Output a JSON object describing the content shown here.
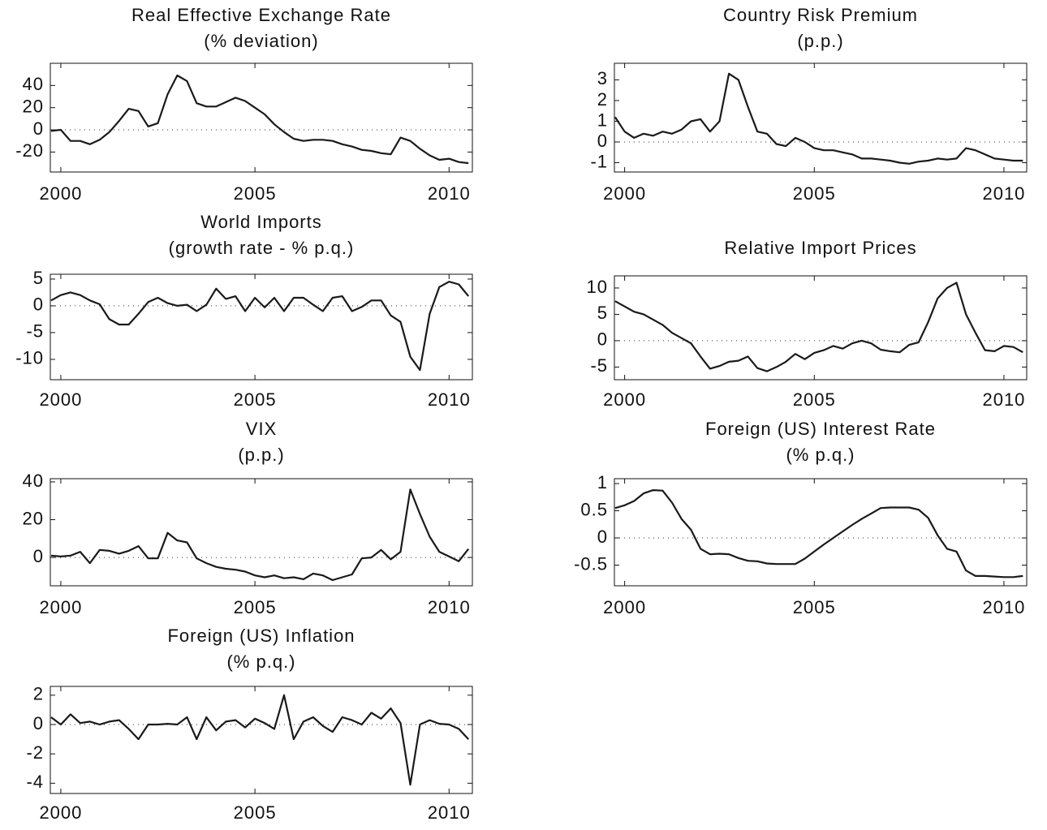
{
  "chart_data": [
    {
      "type": "line",
      "title": "Real Effective Exchange Rate",
      "subtitle": "(% deviation)",
      "x": [
        1999.75,
        2000,
        2000.25,
        2000.5,
        2000.75,
        2001,
        2001.25,
        2001.5,
        2001.75,
        2002,
        2002.25,
        2002.5,
        2002.75,
        2003,
        2003.25,
        2003.5,
        2003.75,
        2004,
        2004.25,
        2004.5,
        2004.75,
        2005,
        2005.25,
        2005.5,
        2005.75,
        2006,
        2006.25,
        2006.5,
        2006.75,
        2007,
        2007.25,
        2007.5,
        2007.75,
        2008,
        2008.25,
        2008.5,
        2008.75,
        2009,
        2009.25,
        2009.5,
        2009.75,
        2010,
        2010.25,
        2010.5
      ],
      "series": [
        {
          "color": "#1a1a1a",
          "values": [
            -1,
            0,
            -10,
            -10,
            -13,
            -9,
            -2,
            8,
            19,
            17,
            3,
            6,
            32,
            49,
            44,
            24,
            21,
            21,
            25,
            29,
            26,
            20,
            14,
            5,
            -2,
            -8,
            -10,
            -9,
            -9,
            -10,
            -13,
            -15,
            -18,
            -19,
            -21,
            -22,
            -7,
            -10,
            -17,
            -23,
            -27,
            -26,
            -29,
            -30
          ]
        }
      ],
      "xlim": [
        1999.73,
        2010.6
      ],
      "xticks": [
        2000,
        2005,
        2010
      ],
      "ylim": [
        -38,
        60
      ],
      "yticks": [
        -20,
        0,
        20,
        40
      ],
      "hline": 0
    },
    {
      "type": "line",
      "title": "Country Risk Premium",
      "subtitle": "(p.p.)",
      "x": [
        1999.75,
        2000,
        2000.25,
        2000.5,
        2000.75,
        2001,
        2001.25,
        2001.5,
        2001.75,
        2002,
        2002.25,
        2002.5,
        2002.75,
        2003,
        2003.25,
        2003.5,
        2003.75,
        2004,
        2004.25,
        2004.5,
        2004.75,
        2005,
        2005.25,
        2005.5,
        2005.75,
        2006,
        2006.25,
        2006.5,
        2006.75,
        2007,
        2007.25,
        2007.5,
        2007.75,
        2008,
        2008.25,
        2008.5,
        2008.75,
        2009,
        2009.25,
        2009.5,
        2009.75,
        2010,
        2010.25,
        2010.5
      ],
      "series": [
        {
          "color": "#1a1a1a",
          "values": [
            1.2,
            0.5,
            0.2,
            0.4,
            0.3,
            0.5,
            0.4,
            0.6,
            1.0,
            1.1,
            0.5,
            1.0,
            3.3,
            3.0,
            1.7,
            0.5,
            0.4,
            -0.1,
            -0.2,
            0.2,
            0,
            -0.3,
            -0.4,
            -0.4,
            -0.5,
            -0.6,
            -0.8,
            -0.8,
            -0.85,
            -0.9,
            -1.0,
            -1.05,
            -0.95,
            -0.9,
            -0.8,
            -0.85,
            -0.8,
            -0.3,
            -0.4,
            -0.6,
            -0.8,
            -0.85,
            -0.9,
            -0.9
          ]
        }
      ],
      "xlim": [
        1999.73,
        2010.6
      ],
      "xticks": [
        2000,
        2005,
        2010
      ],
      "ylim": [
        -1.45,
        3.8
      ],
      "yticks": [
        -1,
        0,
        1,
        2,
        3
      ],
      "hline": 0
    },
    {
      "type": "line",
      "title": "World Imports",
      "subtitle": "(growth rate - % p.q.)",
      "x": [
        1999.75,
        2000,
        2000.25,
        2000.5,
        2000.75,
        2001,
        2001.25,
        2001.5,
        2001.75,
        2002,
        2002.25,
        2002.5,
        2002.75,
        2003,
        2003.25,
        2003.5,
        2003.75,
        2004,
        2004.25,
        2004.5,
        2004.75,
        2005,
        2005.25,
        2005.5,
        2005.75,
        2006,
        2006.25,
        2006.5,
        2006.75,
        2007,
        2007.25,
        2007.5,
        2007.75,
        2008,
        2008.25,
        2008.5,
        2008.75,
        2009,
        2009.25,
        2009.5,
        2009.75,
        2010,
        2010.25,
        2010.5
      ],
      "series": [
        {
          "color": "#1a1a1a",
          "values": [
            1,
            2,
            2.5,
            2,
            1,
            0.3,
            -2.5,
            -3.5,
            -3.5,
            -1.5,
            0.7,
            1.5,
            0.5,
            0,
            0.2,
            -1,
            0.2,
            3.2,
            1.3,
            1.8,
            -1,
            1.5,
            -0.3,
            1.5,
            -1,
            1.5,
            1.5,
            0.2,
            -1,
            1.5,
            1.8,
            -1,
            -0.2,
            1,
            1,
            -1.8,
            -3,
            -9.5,
            -12,
            -1.5,
            3.5,
            4.5,
            4,
            1.8
          ]
        }
      ],
      "xlim": [
        1999.73,
        2010.6
      ],
      "xticks": [
        2000,
        2005,
        2010
      ],
      "ylim": [
        -13.8,
        5.9
      ],
      "yticks": [
        -10,
        -5,
        0,
        5
      ],
      "hline": 0
    },
    {
      "type": "line",
      "title": "Relative Import Prices",
      "x": [
        1999.75,
        2000,
        2000.25,
        2000.5,
        2000.75,
        2001,
        2001.25,
        2001.5,
        2001.75,
        2002,
        2002.25,
        2002.5,
        2002.75,
        2003,
        2003.25,
        2003.5,
        2003.75,
        2004,
        2004.25,
        2004.5,
        2004.75,
        2005,
        2005.25,
        2005.5,
        2005.75,
        2006,
        2006.25,
        2006.5,
        2006.75,
        2007,
        2007.25,
        2007.5,
        2007.75,
        2008,
        2008.25,
        2008.5,
        2008.75,
        2009,
        2009.25,
        2009.5,
        2009.75,
        2010,
        2010.25,
        2010.5
      ],
      "series": [
        {
          "color": "#1a1a1a",
          "values": [
            7.5,
            6.5,
            5.5,
            5,
            4,
            3,
            1.5,
            0.5,
            -0.5,
            -3,
            -5.3,
            -4.8,
            -4,
            -3.8,
            -3,
            -5.2,
            -5.8,
            -5,
            -4,
            -2.5,
            -3.5,
            -2.3,
            -1.8,
            -1,
            -1.5,
            -0.5,
            0,
            -0.5,
            -1.7,
            -2,
            -2.2,
            -0.8,
            -0.3,
            3.5,
            8,
            10,
            11,
            5,
            1.5,
            -1.8,
            -2,
            -1,
            -1.2,
            -2.2
          ]
        }
      ],
      "xlim": [
        1999.73,
        2010.6
      ],
      "xticks": [
        2000,
        2005,
        2010
      ],
      "ylim": [
        -7.4,
        12.3
      ],
      "yticks": [
        -5,
        0,
        5,
        10
      ],
      "hline": 0
    },
    {
      "type": "line",
      "title": "VIX",
      "subtitle": "(p.p.)",
      "x": [
        1999.75,
        2000,
        2000.25,
        2000.5,
        2000.75,
        2001,
        2001.25,
        2001.5,
        2001.75,
        2002,
        2002.25,
        2002.5,
        2002.75,
        2003,
        2003.25,
        2003.5,
        2003.75,
        2004,
        2004.25,
        2004.5,
        2004.75,
        2005,
        2005.25,
        2005.5,
        2005.75,
        2006,
        2006.25,
        2006.5,
        2006.75,
        2007,
        2007.25,
        2007.5,
        2007.75,
        2008,
        2008.25,
        2008.5,
        2008.75,
        2009,
        2009.25,
        2009.5,
        2009.75,
        2010,
        2010.25,
        2010.5
      ],
      "series": [
        {
          "color": "#1a1a1a",
          "values": [
            1,
            0.5,
            1,
            3,
            -3,
            4,
            3.5,
            2,
            3.5,
            6,
            -0.5,
            -0.5,
            13,
            9,
            8,
            -0.5,
            -3,
            -5,
            -6,
            -6.5,
            -7.5,
            -9.5,
            -10.5,
            -9.5,
            -11,
            -10.5,
            -11.5,
            -8.5,
            -9.5,
            -12,
            -10.5,
            -9,
            -0.5,
            0,
            4,
            -1,
            3,
            36,
            23,
            11,
            3,
            0.5,
            -2,
            4.5
          ]
        }
      ],
      "xlim": [
        1999.73,
        2010.6
      ],
      "xticks": [
        2000,
        2005,
        2010
      ],
      "ylim": [
        -15,
        41.7
      ],
      "yticks": [
        0,
        20,
        40
      ],
      "hline": 0
    },
    {
      "type": "line",
      "title": "Foreign (US) Interest Rate",
      "subtitle": "(% p.q.)",
      "x": [
        1999.75,
        2000,
        2000.25,
        2000.5,
        2000.75,
        2001,
        2001.25,
        2001.5,
        2001.75,
        2002,
        2002.25,
        2002.5,
        2002.75,
        2003,
        2003.25,
        2003.5,
        2003.75,
        2004,
        2004.25,
        2004.5,
        2004.75,
        2005,
        2005.25,
        2005.5,
        2005.75,
        2006,
        2006.25,
        2006.5,
        2006.75,
        2007,
        2007.25,
        2007.5,
        2007.75,
        2008,
        2008.25,
        2008.5,
        2008.75,
        2009,
        2009.25,
        2009.5,
        2009.75,
        2010,
        2010.25,
        2010.5
      ],
      "series": [
        {
          "color": "#1a1a1a",
          "values": [
            0.55,
            0.6,
            0.68,
            0.82,
            0.88,
            0.87,
            0.65,
            0.35,
            0.15,
            -0.2,
            -0.3,
            -0.29,
            -0.3,
            -0.37,
            -0.42,
            -0.43,
            -0.47,
            -0.48,
            -0.48,
            -0.48,
            -0.38,
            -0.25,
            -0.12,
            0,
            0.12,
            0.24,
            0.35,
            0.45,
            0.55,
            0.56,
            0.56,
            0.56,
            0.52,
            0.37,
            0.05,
            -0.2,
            -0.25,
            -0.6,
            -0.7,
            -0.7,
            -0.71,
            -0.72,
            -0.72,
            -0.7
          ]
        }
      ],
      "xlim": [
        1999.73,
        2010.6
      ],
      "xticks": [
        2000,
        2005,
        2010
      ],
      "ylim": [
        -0.88,
        1.09
      ],
      "yticks": [
        -0.5,
        0,
        0.5,
        1
      ],
      "hline": 0
    },
    {
      "type": "line",
      "title": "Foreign (US) Inflation",
      "subtitle": "(% p.q.)",
      "x": [
        1999.75,
        2000,
        2000.25,
        2000.5,
        2000.75,
        2001,
        2001.25,
        2001.5,
        2001.75,
        2002,
        2002.25,
        2002.5,
        2002.75,
        2003,
        2003.25,
        2003.5,
        2003.75,
        2004,
        2004.25,
        2004.5,
        2004.75,
        2005,
        2005.25,
        2005.5,
        2005.75,
        2006,
        2006.25,
        2006.5,
        2006.75,
        2007,
        2007.25,
        2007.5,
        2007.75,
        2008,
        2008.25,
        2008.5,
        2008.75,
        2009,
        2009.25,
        2009.5,
        2009.75,
        2010,
        2010.25,
        2010.5
      ],
      "series": [
        {
          "color": "#1a1a1a",
          "values": [
            0.5,
            0,
            0.7,
            0.1,
            0.2,
            0,
            0.2,
            0.3,
            -0.3,
            -1,
            0,
            0,
            0.05,
            0,
            0.5,
            -1,
            0.5,
            -0.4,
            0.2,
            0.3,
            -0.2,
            0.4,
            0.1,
            -0.3,
            2,
            -1,
            0.2,
            0.5,
            -0.1,
            -0.5,
            0.5,
            0.3,
            0,
            0.8,
            0.4,
            1.1,
            0.1,
            -4.1,
            0,
            0.3,
            0.05,
            0,
            -0.3,
            -1
          ]
        }
      ],
      "xlim": [
        1999.73,
        2010.6
      ],
      "xticks": [
        2000,
        2005,
        2010
      ],
      "ylim": [
        -4.7,
        2.6
      ],
      "yticks": [
        -4,
        -2,
        0,
        2
      ],
      "hline": 0
    }
  ]
}
